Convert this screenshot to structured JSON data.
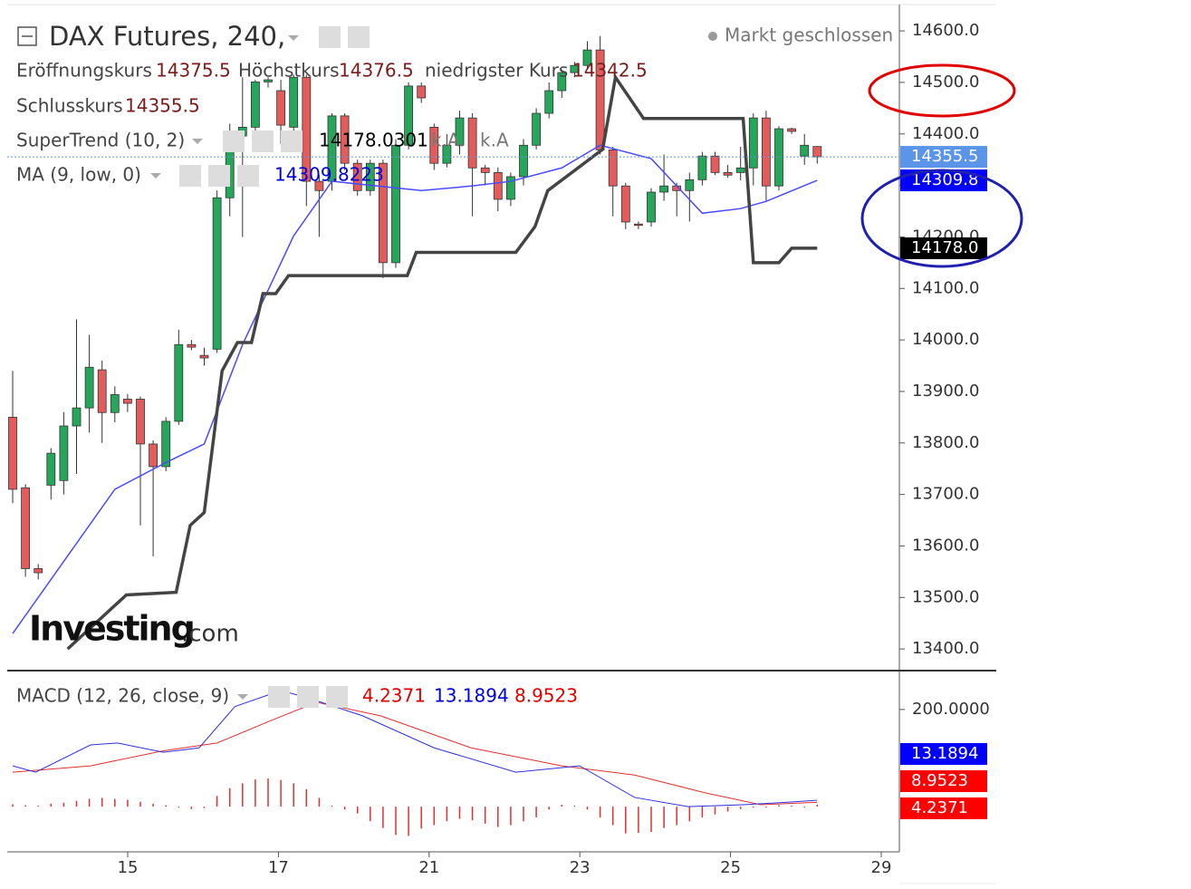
{
  "header": {
    "symbol": "DAX Futures, 240,",
    "status": "Markt geschlossen",
    "open_label": "Eröffnungskurs",
    "high_label": "Höchstkurs",
    "low_label": "niedrigster Kurs",
    "close_label": "Schlusskurs",
    "supertrend_label": "SuperTrend (10, 2)",
    "supertrend_na1": "k.A.",
    "supertrend_na2": "k.A",
    "ma_label": "MA (9, low, 0)",
    "macd_label": "MACD (12, 26, close, 9)",
    "logo_main": "Investing",
    "logo_suffix": ".com"
  },
  "chart_data": {
    "type": "candlestick",
    "ylim": [
      13358,
      14660
    ],
    "yticks": [
      {
        "value": 13400,
        "label": "13400.0"
      },
      {
        "value": 13500,
        "label": "13500.0"
      },
      {
        "value": 13600,
        "label": "13600.0"
      },
      {
        "value": 13700,
        "label": "13700.0"
      },
      {
        "value": 13800,
        "label": "13800.0"
      },
      {
        "value": 13900,
        "label": "13900.0"
      },
      {
        "value": 14000,
        "label": "14000.0"
      },
      {
        "value": 14100,
        "label": "14100.0"
      },
      {
        "value": 14200,
        "label": "14200.0"
      },
      {
        "value": 14300,
        "label": "14300.0"
      },
      {
        "value": 14400,
        "label": "14400.0"
      },
      {
        "value": 14500,
        "label": "14500.0"
      },
      {
        "value": 14600,
        "label": "14600.0"
      }
    ],
    "xticks": [
      15,
      17,
      21,
      23,
      25,
      29
    ],
    "up_color": "#26a65b",
    "down_color": "#e25c5c",
    "candles": {
      "open": [
        13850,
        13713,
        13556,
        13718,
        13727,
        13833,
        13868,
        13942,
        13859,
        13885,
        13885,
        13798,
        13754,
        13842,
        13991,
        13970,
        13982,
        14276,
        14396,
        14413,
        14501,
        14484,
        14413,
        14510,
        14308,
        14308,
        14435,
        14343,
        14290,
        14343,
        14150,
        14378,
        14493,
        14413,
        14343,
        14378,
        14431,
        14334,
        14325,
        14273,
        14317,
        14378,
        14440,
        14484,
        14519,
        14533,
        14563,
        14369,
        14299,
        14225,
        14229,
        14287,
        14299,
        14290,
        14311,
        14357,
        14325,
        14325,
        14334,
        14431,
        14299,
        14410,
        14357,
        14375.5
      ],
      "high": [
        13940,
        13720,
        13565,
        13790,
        13860,
        14040,
        14010,
        13960,
        13910,
        13895,
        13890,
        13805,
        13850,
        14020,
        14000,
        13985,
        14290,
        14420,
        14510,
        14505,
        14510,
        14505,
        14515,
        14515,
        14320,
        14440,
        14440,
        14350,
        14350,
        14350,
        14390,
        14500,
        14500,
        14420,
        14400,
        14445,
        14440,
        14340,
        14335,
        14325,
        14390,
        14450,
        14500,
        14525,
        14540,
        14580,
        14590,
        14375,
        14305,
        14230,
        14295,
        14360,
        14305,
        14325,
        14365,
        14365,
        14340,
        14375,
        14440,
        14445,
        14415,
        14412,
        14400,
        14376.5
      ],
      "low": [
        13683,
        13540,
        13535,
        13690,
        13700,
        13740,
        13820,
        13800,
        13840,
        13860,
        13640,
        13580,
        13745,
        13835,
        13980,
        13950,
        13975,
        14240,
        14200,
        14400,
        14490,
        14380,
        14400,
        14260,
        14200,
        14290,
        14330,
        14280,
        14280,
        14120,
        14140,
        14370,
        14460,
        14330,
        14335,
        14360,
        14240,
        14300,
        14250,
        14260,
        14300,
        14370,
        14430,
        14470,
        14510,
        14525,
        14360,
        14240,
        14215,
        14215,
        14220,
        14270,
        14240,
        14230,
        14300,
        14320,
        14315,
        14310,
        14300,
        14270,
        14290,
        14400,
        14340,
        14342.5
      ],
      "close": [
        13710,
        13556,
        13548,
        13780,
        13833,
        13868,
        13947,
        13859,
        13894,
        13877,
        13798,
        13754,
        13842,
        13991,
        13986,
        13965,
        14276,
        14396,
        14413,
        14501,
        14505,
        14417,
        14510,
        14308,
        14290,
        14435,
        14343,
        14290,
        14343,
        14150,
        14378,
        14493,
        14470,
        14343,
        14378,
        14431,
        14334,
        14325,
        14273,
        14317,
        14378,
        14440,
        14484,
        14519,
        14533,
        14563,
        14369,
        14299,
        14229,
        14223,
        14287,
        14299,
        14290,
        14311,
        14357,
        14325,
        14320,
        14334,
        14431,
        14299,
        14410,
        14405,
        14378,
        14355.5
      ]
    },
    "ma": {
      "name": "MA (9, low, 0)",
      "color": "#4a4aff",
      "x": [
        0,
        8,
        12,
        15,
        18,
        22,
        25,
        32,
        36,
        39,
        43,
        46,
        50,
        54,
        57,
        59,
        63
      ],
      "values": [
        13430,
        13710,
        13762,
        13798,
        13991,
        14202,
        14308,
        14290,
        14299,
        14308,
        14334,
        14378,
        14352,
        14246,
        14255,
        14269,
        14309.8223
      ]
    },
    "supertrend": {
      "name": "SuperTrend (10, 2)",
      "color": "#444444",
      "x": [
        4.3,
        8.9,
        12.8,
        13.9,
        15,
        16.4,
        17.6,
        18.7,
        19.6,
        20.6,
        21.6,
        30.9,
        31.6,
        39.4,
        40.9,
        41.9,
        46.2,
        47.2,
        49.4,
        57.2,
        58,
        60,
        61,
        63
      ],
      "values": [
        13400,
        13505,
        13510,
        13640,
        13665,
        13940,
        13995,
        13995,
        14090,
        14090,
        14125,
        14125,
        14170,
        14170,
        14220,
        14290,
        14370,
        14510,
        14430,
        14430,
        14150,
        14150,
        14178.0301,
        14178.0301
      ]
    },
    "price_labels": [
      {
        "value": 14355.5,
        "color": "#5b95e8"
      },
      {
        "value": 14309.8,
        "color": "#0000ff"
      },
      {
        "value": {
          "value": 14178,
          "label": "14178.0"
        },
        "color": "#000000"
      }
    ],
    "macd": {
      "ylim": [
        -93,
        280
      ],
      "yticks": [
        {
          "value": 200,
          "label": "200.0000"
        }
      ],
      "histogram": {
        "color": "#e03030",
        "values": [
          5,
          3,
          2,
          6,
          8,
          12,
          16,
          18,
          16,
          14,
          10,
          6,
          3,
          -2,
          -5,
          -3,
          22,
          38,
          48,
          56,
          58,
          55,
          48,
          36,
          18,
          2,
          -6,
          -14,
          -30,
          -44,
          -58,
          -60,
          -45,
          -38,
          -30,
          -25,
          -28,
          -35,
          -42,
          -38,
          -30,
          -22,
          -6,
          4,
          2,
          -6,
          -22,
          -38,
          -55,
          -54,
          -52,
          -44,
          -38,
          -30,
          -22,
          -16,
          -10,
          -5,
          -2,
          0,
          3,
          2,
          -2,
          4.2371
        ]
      },
      "macd_line": {
        "color": "#3030e0",
        "x": [
          0,
          1.8,
          6.1,
          8.2,
          11.8,
          14.6,
          17.4,
          21,
          23.1,
          27.4,
          33,
          39.4,
          44.4,
          48.7,
          52.9,
          57.2,
          60.7,
          63
        ],
        "values": [
          84,
          71,
          127,
          131,
          112,
          121,
          206,
          239,
          224,
          187,
          121,
          71,
          84,
          19,
          0,
          4,
          9,
          13.1894
        ]
      },
      "signal": {
        "color": "#e03030",
        "x": [
          0,
          6.1,
          11.8,
          16,
          20.3,
          23.8,
          28.8,
          35.9,
          43,
          48.7,
          54.3,
          58.6,
          63
        ],
        "values": [
          71,
          84,
          115,
          131,
          178,
          215,
          187,
          121,
          84,
          65,
          28,
          4,
          8.9523
        ]
      }
    }
  }
}
